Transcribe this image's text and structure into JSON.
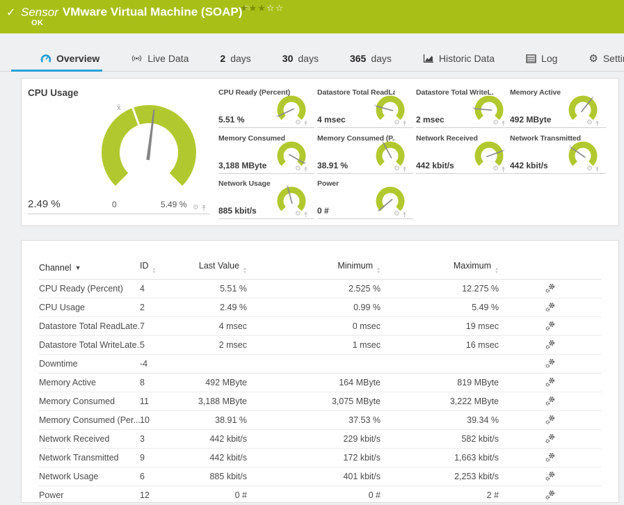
{
  "colors": {
    "header_green": "#a8bf17",
    "gauge_green": "#b2c82f",
    "tab_blue": "#28a2d9",
    "star_filled": "#7b8d04"
  },
  "header": {
    "check_icon": "✓",
    "kind_label": "Sensor",
    "title": "VMware Virtual Machine (SOAP)",
    "flag_icon": "⚐",
    "status": "OK",
    "stars_filled": "★★★",
    "stars_empty": "☆☆"
  },
  "tabs": [
    {
      "label": "Overview",
      "icon": "gauge-icon",
      "active": true
    },
    {
      "label": "Live Data",
      "icon": "broadcast-icon"
    },
    {
      "num": "2",
      "label": "days"
    },
    {
      "num": "30",
      "label": "days"
    },
    {
      "num": "365",
      "label": "days"
    },
    {
      "label": "Historic Data",
      "icon": "chart-icon"
    },
    {
      "label": "Log",
      "icon": "log-icon"
    },
    {
      "label": "Settings",
      "icon": "gear-icon"
    }
  ],
  "big_gauge": {
    "title": "CPU Usage",
    "value": "2.49 %",
    "scale_min": "0",
    "scale_max": "5.49 %",
    "avg_marker": "x̄",
    "needle_deg": 7
  },
  "gauges": [
    {
      "title": "CPU Ready (Percent)",
      "value": "5.51 %",
      "needle_deg": -115
    },
    {
      "title": "Datastore Total ReadLa...",
      "value": "4 msec",
      "needle_deg": -75
    },
    {
      "title": "Datastore Total WriteL...",
      "value": "2 msec",
      "needle_deg": -85
    },
    {
      "title": "Memory Active",
      "value": "492 MByte",
      "needle_deg": 38
    },
    {
      "title": "Memory Consumed",
      "value": "3,188 MByte",
      "needle_deg": 120
    },
    {
      "title": "Memory Consumed (P...",
      "value": "38.91 %",
      "needle_deg": -28
    },
    {
      "title": "Network Received",
      "value": "442 kbit/s",
      "needle_deg": 70
    },
    {
      "title": "Network Transmitted",
      "value": "442 kbit/s",
      "needle_deg": -55
    },
    {
      "title": "Network Usage",
      "value": "885 kbit/s",
      "needle_deg": -15
    },
    {
      "title": "Power",
      "value": "0 #",
      "needle_deg": -130
    }
  ],
  "table": {
    "headers": [
      {
        "label": "Channel",
        "sort": "desc"
      },
      {
        "label": "ID",
        "sort": "both"
      },
      {
        "label": "Last Value",
        "sort": "both"
      },
      {
        "label": "Minimum",
        "sort": "both"
      },
      {
        "label": "Maximum",
        "sort": "both"
      }
    ],
    "rows": [
      {
        "channel": "CPU Ready (Percent)",
        "id": "4",
        "last": "5.51 %",
        "min": "2.525 %",
        "max": "12.275 %"
      },
      {
        "channel": "CPU Usage",
        "id": "2",
        "last": "2.49 %",
        "min": "0.99 %",
        "max": "5.49 %"
      },
      {
        "channel": "Datastore Total ReadLate...",
        "id": "7",
        "last": "4 msec",
        "min": "0 msec",
        "max": "19 msec"
      },
      {
        "channel": "Datastore Total WriteLate...",
        "id": "5",
        "last": "2 msec",
        "min": "1 msec",
        "max": "16 msec"
      },
      {
        "channel": "Downtime",
        "id": "-4",
        "last": "",
        "min": "",
        "max": ""
      },
      {
        "channel": "Memory Active",
        "id": "8",
        "last": "492 MByte",
        "min": "164 MByte",
        "max": "819 MByte"
      },
      {
        "channel": "Memory Consumed",
        "id": "11",
        "last": "3,188 MByte",
        "min": "3,075 MByte",
        "max": "3,222 MByte"
      },
      {
        "channel": "Memory Consumed (Per...",
        "id": "10",
        "last": "38.91 %",
        "min": "37.53 %",
        "max": "39.34 %"
      },
      {
        "channel": "Network Received",
        "id": "3",
        "last": "442 kbit/s",
        "min": "229 kbit/s",
        "max": "582 kbit/s"
      },
      {
        "channel": "Network Transmitted",
        "id": "9",
        "last": "442 kbit/s",
        "min": "172 kbit/s",
        "max": "1,663 kbit/s"
      },
      {
        "channel": "Network Usage",
        "id": "6",
        "last": "885 kbit/s",
        "min": "401 kbit/s",
        "max": "2,253 kbit/s"
      },
      {
        "channel": "Power",
        "id": "12",
        "last": "0 #",
        "min": "0 #",
        "max": "2 #"
      }
    ]
  }
}
